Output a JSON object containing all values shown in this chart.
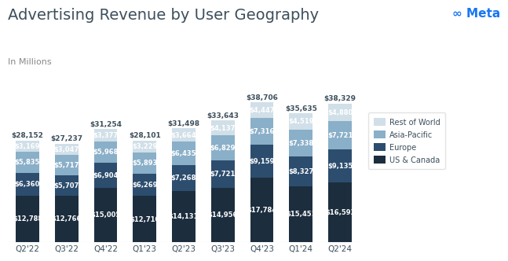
{
  "title": "Advertising Revenue by User Geography",
  "subtitle": "In Millions",
  "quarters": [
    "Q2'22",
    "Q3'22",
    "Q4'22",
    "Q1'23",
    "Q2'23",
    "Q3'23",
    "Q4'23",
    "Q1'24",
    "Q2'24"
  ],
  "us_canada": [
    12788,
    12766,
    15005,
    12710,
    14131,
    14956,
    17784,
    15451,
    16593
  ],
  "europe": [
    6360,
    5707,
    6904,
    6269,
    7268,
    7721,
    9159,
    8327,
    9135
  ],
  "asia_pacific": [
    5835,
    5717,
    5968,
    5893,
    6435,
    6829,
    7316,
    7338,
    7721
  ],
  "rest_of_world": [
    3169,
    3047,
    3377,
    3229,
    3664,
    4137,
    4447,
    4519,
    4880
  ],
  "totals": [
    28152,
    27237,
    31254,
    28101,
    31498,
    33643,
    38706,
    35635,
    38329
  ],
  "colors": {
    "us_canada": "#1c2e3e",
    "europe": "#2d4d6e",
    "asia_pacific": "#8aafc8",
    "rest_of_world": "#d0dfe8"
  },
  "background_color": "#ffffff",
  "title_fontsize": 14,
  "subtitle_fontsize": 8,
  "label_fontsize": 6.0,
  "total_fontsize": 6.5,
  "tick_fontsize": 7.5,
  "meta_color": "#1877F2",
  "text_color": "#3d4f5c",
  "total_color": "#3d4f5c"
}
